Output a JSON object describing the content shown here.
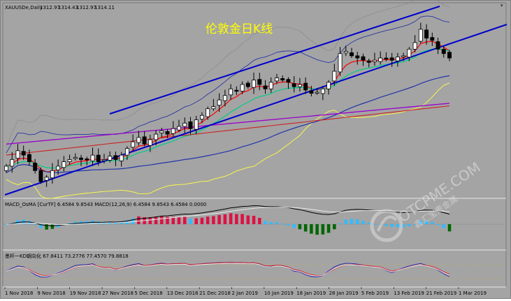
{
  "header": {
    "symbol_info": "XAUUSDe,Daily",
    "ohlc": [
      "1312.97",
      "1314.43",
      "1312.97",
      "1314.11"
    ]
  },
  "caption": "伦敦金日K线",
  "macd_panel": {
    "label": "MACD_OsMA [CurTF] 6.4584 9.8543 MACD(12,26,9) 6.4584 9.8543 6.4584 0.0000"
  },
  "kd_panel": {
    "label": "墨杆一KD朝向化 67.8411 73.2776 77.4570 79.8818"
  },
  "x_axis": {
    "labels": [
      "1 Nov 2018",
      "9 Nov 2018",
      "19 Nov 2018",
      "27 Nov 2018",
      "5 Dec 2018",
      "13 Dec 2018",
      "21 Dec 2018",
      "2 Jan 2019",
      "10 Jan 2019",
      "18 Jan 2019",
      "28 Jan 2019",
      "5 Feb 2019",
      "13 Feb 2019",
      "21 Feb 2019",
      "1 Mar 2019"
    ]
  },
  "watermark": {
    "domain": "OTCPME.COM",
    "slogan": "鑫汇宝贵金属"
  },
  "colors": {
    "background": "#a4a4a4",
    "bull_candle": "#ffffff",
    "bear_candle": "#000000",
    "channel": "#0000cc",
    "ma_fast": "#ff0000",
    "ma_mid": "#00cc88",
    "ma_slow": "#2233aa",
    "ma_long": "#9900cc",
    "ma_long2": "#cc2222",
    "bollinger": "#ffff44",
    "hist_pos": "#dd1144",
    "hist_neg": "#006600",
    "hist_light": "#33bbff"
  },
  "chart_data": {
    "type": "candlestick",
    "symbol": "XAUUSDe",
    "timeframe": "Daily",
    "close_series": [
      1216,
      1222,
      1230,
      1226,
      1220,
      1212,
      1202,
      1206,
      1212,
      1216,
      1220,
      1222,
      1224,
      1222,
      1222,
      1226,
      1220,
      1222,
      1225,
      1222,
      1226,
      1232,
      1238,
      1242,
      1236,
      1240,
      1245,
      1248,
      1245,
      1250,
      1252,
      1255,
      1250,
      1258,
      1262,
      1268,
      1270,
      1276,
      1280,
      1286,
      1284,
      1290,
      1288,
      1294,
      1290,
      1286,
      1292,
      1296,
      1294,
      1292,
      1288,
      1290,
      1285,
      1282,
      1283,
      1286,
      1292,
      1302,
      1318,
      1320,
      1316,
      1314,
      1312,
      1310,
      1312,
      1314,
      1313,
      1312,
      1315,
      1316,
      1322,
      1328,
      1340,
      1332,
      1330,
      1322,
      1318,
      1314
    ],
    "time_range": [
      "1 Nov 2018",
      "1 Mar 2019"
    ]
  }
}
